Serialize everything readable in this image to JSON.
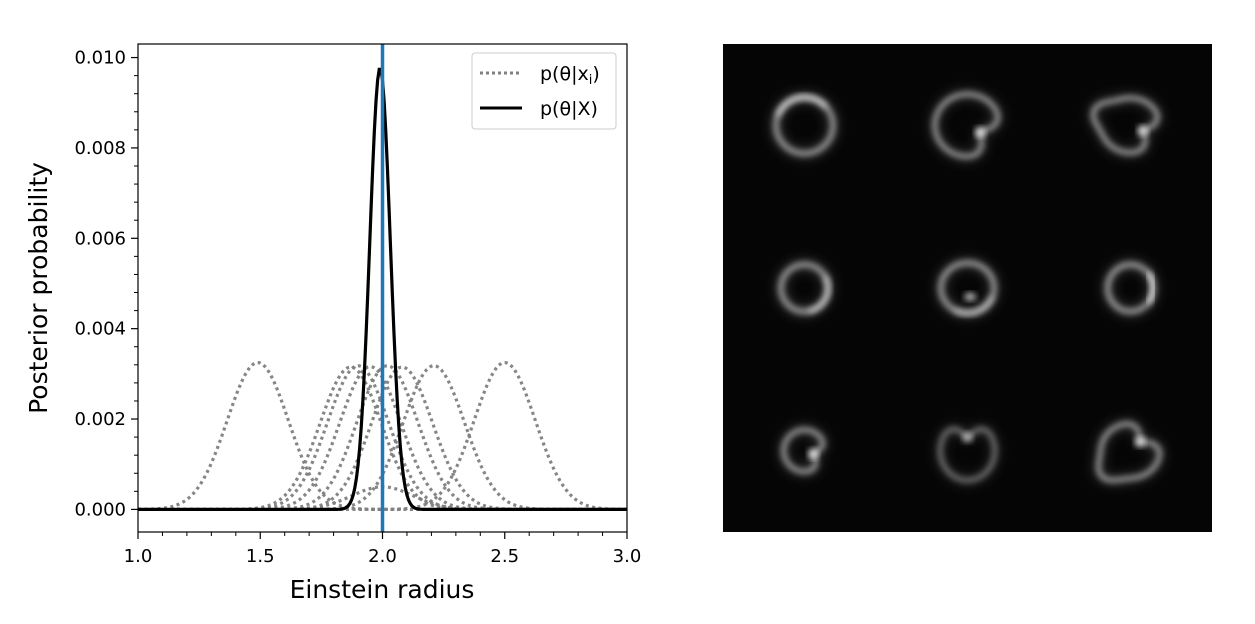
{
  "chart_data": [
    {
      "type": "line",
      "xlabel": "Einstein radius",
      "ylabel": "Posterior probability",
      "xlim": [
        1.0,
        3.0
      ],
      "ylim": [
        -0.0005,
        0.0103
      ],
      "x_ticks": [
        "1.0",
        "1.5",
        "2.0",
        "2.5",
        "3.0"
      ],
      "y_ticks": [
        "0.000",
        "0.002",
        "0.004",
        "0.006",
        "0.008",
        "0.010"
      ],
      "true_value": 2.0,
      "true_value_color": "#1f77b4",
      "legend": {
        "location": "upper-right",
        "entries": [
          {
            "label": "p(θ|x",
            "subscript": "i",
            "label_end": ")",
            "style": "dotted",
            "color": "#808080"
          },
          {
            "label": "p(θ|X)",
            "style": "solid",
            "color": "#000000"
          }
        ]
      },
      "individual_posteriors": {
        "style": "dotted",
        "color": "#808080",
        "shape": "gaussian",
        "series": [
          {
            "mu": 1.49,
            "sigma": 0.125,
            "peak": 0.00325
          },
          {
            "mu": 2.0,
            "sigma": 0.125,
            "peak": 0.0005
          },
          {
            "mu": 1.87,
            "sigma": 0.125,
            "peak": 0.00315
          },
          {
            "mu": 1.9,
            "sigma": 0.125,
            "peak": 0.00318
          },
          {
            "mu": 1.95,
            "sigma": 0.125,
            "peak": 0.00316
          },
          {
            "mu": 2.02,
            "sigma": 0.125,
            "peak": 0.00318
          },
          {
            "mu": 2.08,
            "sigma": 0.125,
            "peak": 0.00315
          },
          {
            "mu": 2.21,
            "sigma": 0.125,
            "peak": 0.00318
          },
          {
            "mu": 2.5,
            "sigma": 0.125,
            "peak": 0.00325
          }
        ]
      },
      "combined_posterior": {
        "style": "solid",
        "color": "#000000",
        "shape": "gaussian",
        "mu": 1.99,
        "sigma": 0.042,
        "peak": 0.00977
      }
    },
    {
      "type": "image",
      "grid": [
        3,
        3
      ],
      "background": "#050505",
      "panels": [
        {
          "shape": "ring",
          "ex": 0.75,
          "ey": 0.74,
          "arc_start": 200,
          "arc_end": 320,
          "arc_boost": 0.7
        },
        {
          "shape": "cusp",
          "ex": 0.86,
          "ey": 0.82,
          "cusp_angle": 30
        },
        {
          "shape": "cusp-teardrop",
          "ex": 0.78,
          "ey": 0.72,
          "cusp_angle": 25
        },
        {
          "shape": "ring",
          "ex": 0.62,
          "ey": 0.62,
          "arc_start": 330,
          "arc_end": 80,
          "arc_boost": 0.6
        },
        {
          "shape": "ring",
          "ex": 0.7,
          "ey": 0.66,
          "arc_start": 20,
          "arc_end": 120,
          "arc_boost": 0.5,
          "inner_spot": true
        },
        {
          "shape": "ring",
          "ex": 0.6,
          "ey": 0.62,
          "arc_start": 320,
          "arc_end": 40,
          "arc_boost": 0.9
        },
        {
          "shape": "cusp-small",
          "ex": 0.55,
          "ey": 0.55,
          "cusp_angle": 20
        },
        {
          "shape": "cusp-faint",
          "ex": 0.72,
          "ey": 0.78,
          "cusp_angle": 270
        },
        {
          "shape": "cusp-teardrop",
          "ex": 0.78,
          "ey": 0.72,
          "cusp_angle": 315
        }
      ]
    }
  ]
}
